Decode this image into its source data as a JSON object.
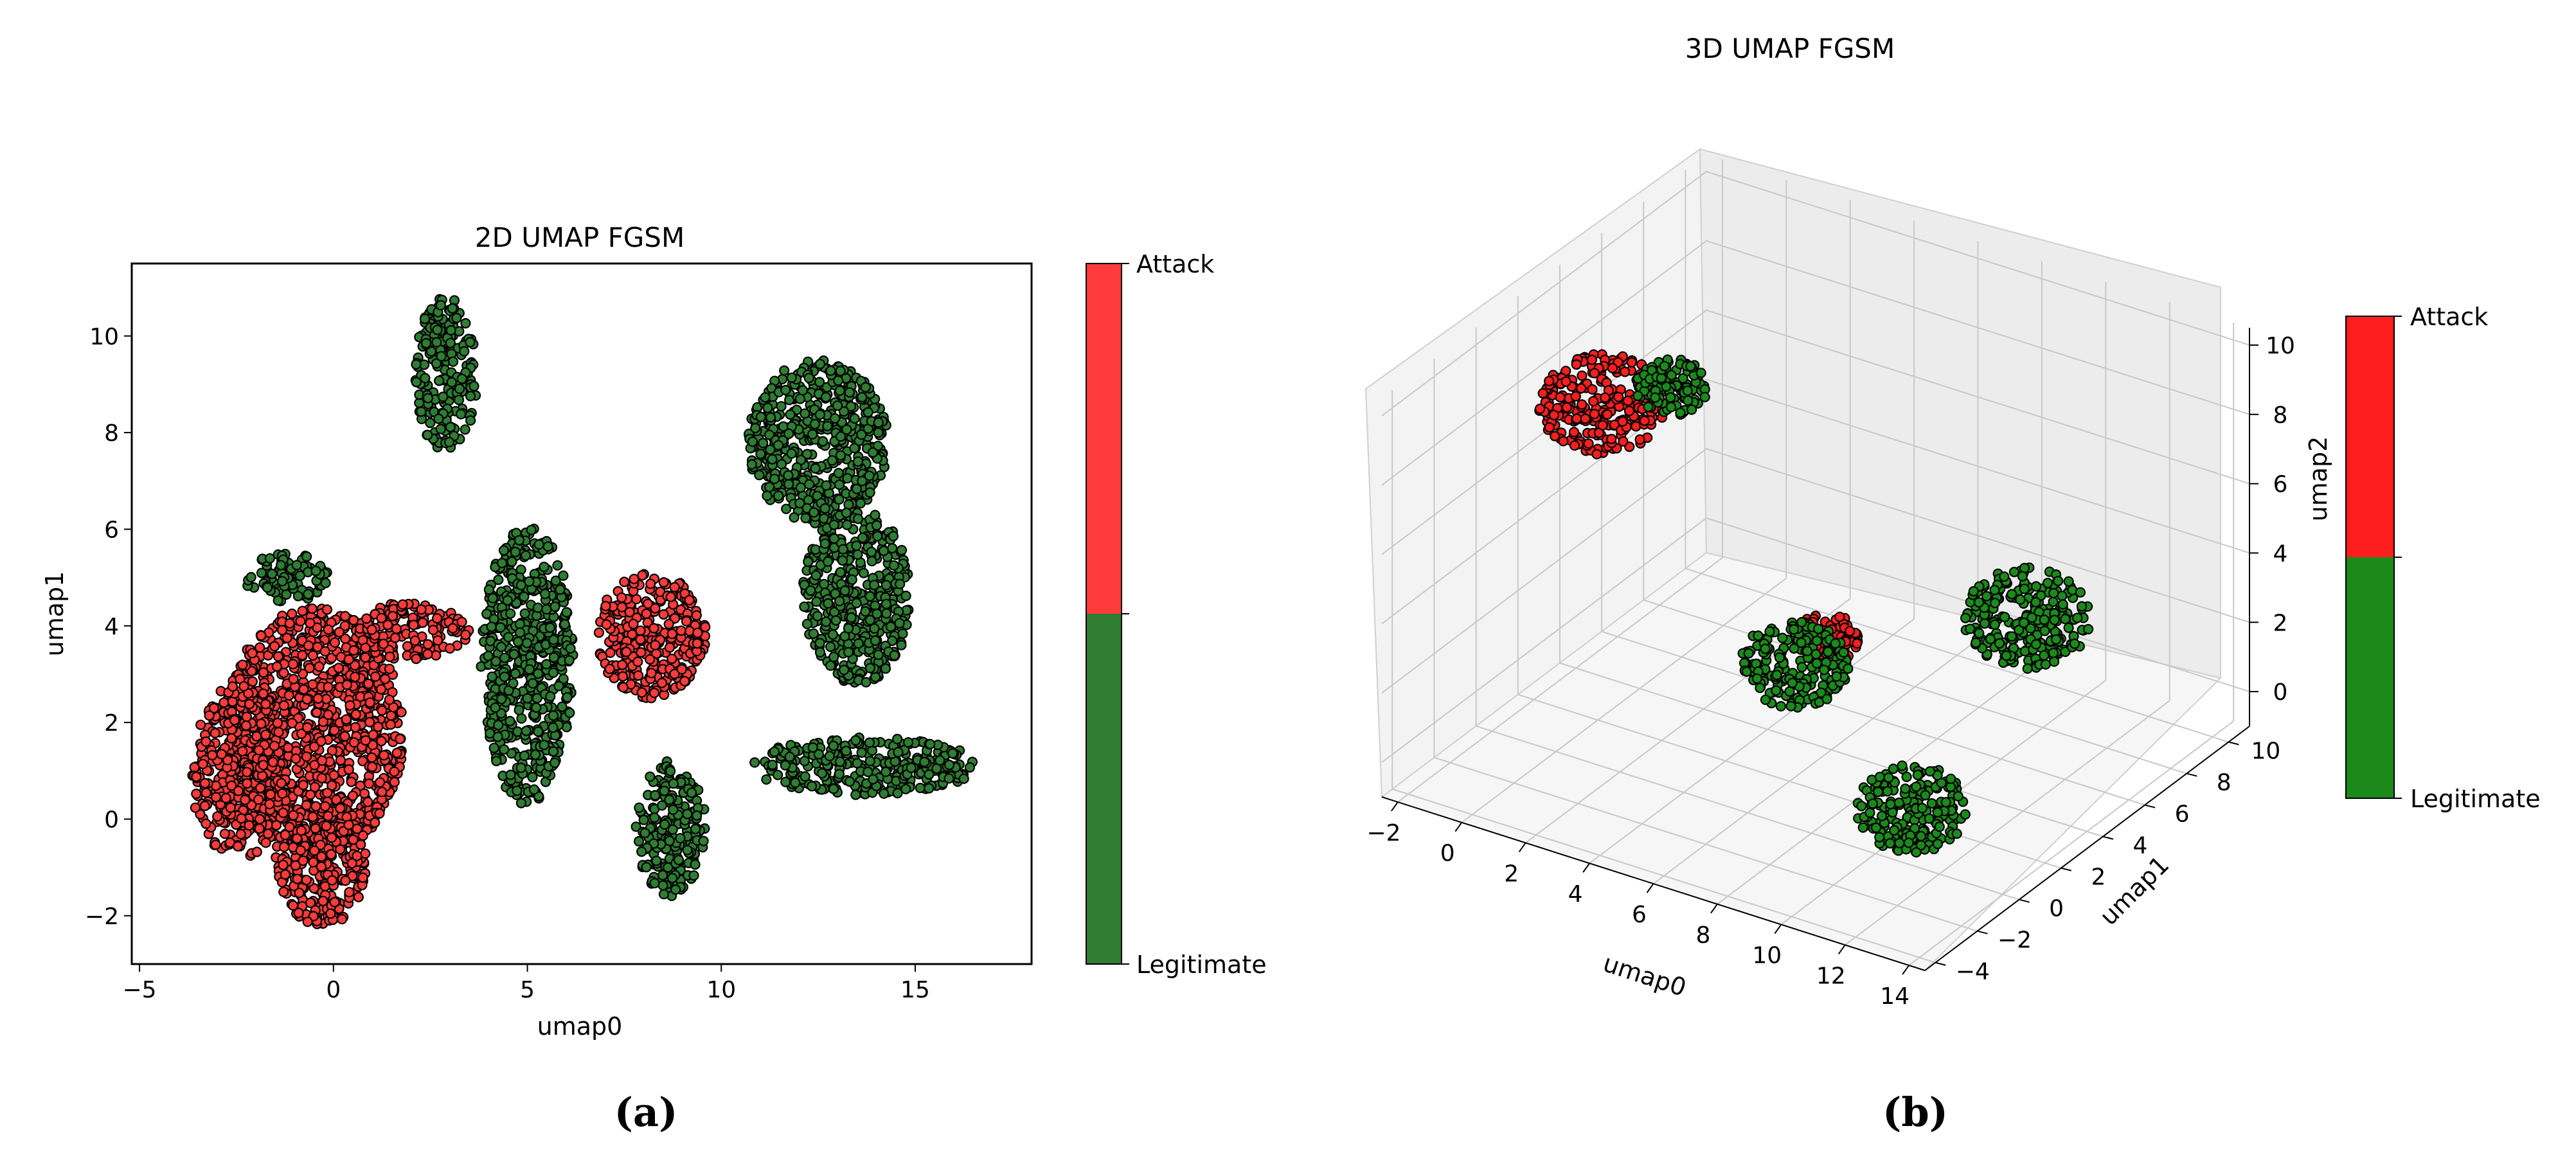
{
  "figure": {
    "caption_a": "(a)",
    "caption_b": "(b)"
  },
  "colors": {
    "attack_2d": "#ff3b3b",
    "legit_2d": "#2e7d32",
    "attack_3d": "#ff1e1e",
    "legit_3d": "#1b8a1b",
    "point_edge": "#000000",
    "pane_3d": "#f2f2f2"
  },
  "chart_data": [
    {
      "type": "scatter",
      "title": "2D UMAP FGSM",
      "xlabel": "umap0",
      "ylabel": "umap1",
      "xlim": [
        -5.2,
        18
      ],
      "ylim": [
        -3,
        11.5
      ],
      "xticks": [
        "−5",
        "0",
        "5",
        "10",
        "15"
      ],
      "xtick_values": [
        -5,
        0,
        5,
        10,
        15
      ],
      "yticks": [
        "−2",
        "0",
        "2",
        "4",
        "6",
        "8",
        "10"
      ],
      "ytick_values": [
        -2,
        0,
        2,
        4,
        6,
        8,
        10
      ],
      "grid": false,
      "colorbar": {
        "labels": [
          "Attack",
          "Legitimate"
        ],
        "split": 0.5
      },
      "clusters": [
        {
          "label": "Attack",
          "cx": -0.5,
          "cy": 1.8,
          "rx": 2.3,
          "ry": 2.6
        },
        {
          "label": "Attack",
          "cx": -2.4,
          "cy": 1.0,
          "rx": 1.3,
          "ry": 1.8
        },
        {
          "label": "Attack",
          "cx": 2.0,
          "cy": 3.9,
          "rx": 1.5,
          "ry": 0.6
        },
        {
          "label": "Attack",
          "cx": -0.3,
          "cy": -0.9,
          "rx": 1.2,
          "ry": 1.3
        },
        {
          "label": "Attack",
          "cx": 8.2,
          "cy": 3.8,
          "rx": 1.4,
          "ry": 1.3
        },
        {
          "label": "Legitimate",
          "cx": 2.9,
          "cy": 9.2,
          "rx": 0.8,
          "ry": 1.6
        },
        {
          "label": "Legitimate",
          "cx": 5.0,
          "cy": 3.2,
          "rx": 1.2,
          "ry": 2.9
        },
        {
          "label": "Legitimate",
          "cx": -1.2,
          "cy": 5.0,
          "rx": 1.1,
          "ry": 0.5
        },
        {
          "label": "Legitimate",
          "cx": 12.5,
          "cy": 7.8,
          "rx": 1.8,
          "ry": 1.7
        },
        {
          "label": "Legitimate",
          "cx": 13.5,
          "cy": 4.6,
          "rx": 1.4,
          "ry": 1.8
        },
        {
          "label": "Legitimate",
          "cx": 13.7,
          "cy": 1.1,
          "rx": 2.9,
          "ry": 0.6
        },
        {
          "label": "Legitimate",
          "cx": 8.7,
          "cy": -0.2,
          "rx": 0.9,
          "ry": 1.4
        }
      ]
    },
    {
      "type": "scatter",
      "title": "3D UMAP FGSM",
      "xlabel": "umap0",
      "ylabel": "umap1",
      "zlabel": "umap2",
      "xticks": [
        "−2",
        "0",
        "2",
        "4",
        "6",
        "8",
        "10",
        "12",
        "14"
      ],
      "yticks": [
        "−4",
        "−2",
        "0",
        "2",
        "4",
        "6",
        "8",
        "10"
      ],
      "zticks": [
        "0",
        "2",
        "4",
        "6",
        "8",
        "10"
      ],
      "grid": true,
      "colorbar": {
        "labels": [
          "Attack",
          "Legitimate"
        ],
        "split": 0.5
      },
      "clusters": [
        {
          "label": "Attack",
          "cx": -0.5,
          "cy": 3.0,
          "cz": 7.5,
          "r": 1.6
        },
        {
          "label": "Legitimate",
          "cx": 1.0,
          "cy": 4.0,
          "cz": 8.0,
          "r": 0.9
        },
        {
          "label": "Attack",
          "cx": 6.2,
          "cy": 3.5,
          "cz": 2.5,
          "r": 0.8
        },
        {
          "label": "Legitimate",
          "cx": 5.5,
          "cy": 3.0,
          "cz": 1.8,
          "r": 1.4
        },
        {
          "label": "Legitimate",
          "cx": 10.5,
          "cy": 6.5,
          "cz": 3.0,
          "r": 1.6
        },
        {
          "label": "Legitimate",
          "cx": 9.5,
          "cy": 2.5,
          "cz": -1.0,
          "r": 1.4
        }
      ]
    }
  ]
}
